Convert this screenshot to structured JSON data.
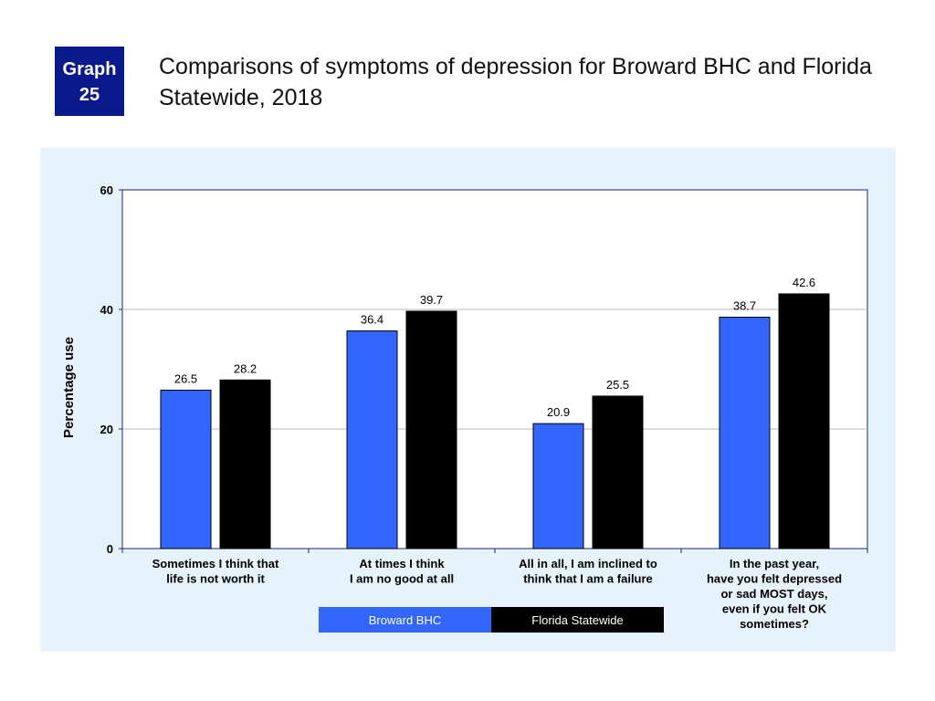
{
  "badge": {
    "line1": "Graph",
    "line2": "25"
  },
  "title": "Comparisons of symptoms of depression for Broward BHC and Florida Statewide, 2018",
  "colors": {
    "broward": "#3366ff",
    "florida": "#000000",
    "panel": "#e6f3fc",
    "badge": "#0a1a8c"
  },
  "chart_data": {
    "type": "bar",
    "title": "",
    "xlabel": "",
    "ylabel": "Percentage use",
    "ylim": [
      0,
      60
    ],
    "yticks": [
      0,
      20,
      40,
      60
    ],
    "grid": true,
    "legend_position": "bottom-center",
    "categories": [
      [
        "Sometimes I think that",
        "life is not worth it"
      ],
      [
        "At times I think",
        "I am no good at all"
      ],
      [
        "All in all, I am inclined to",
        "think that I am a failure"
      ],
      [
        "In the past year,",
        "have you felt depressed",
        "or sad MOST days,",
        "even if you felt OK",
        "sometimes?"
      ]
    ],
    "series": [
      {
        "name": "Broward BHC",
        "values": [
          26.5,
          36.4,
          20.9,
          38.7
        ]
      },
      {
        "name": "Florida Statewide",
        "values": [
          28.2,
          39.7,
          25.5,
          42.6
        ]
      }
    ]
  }
}
